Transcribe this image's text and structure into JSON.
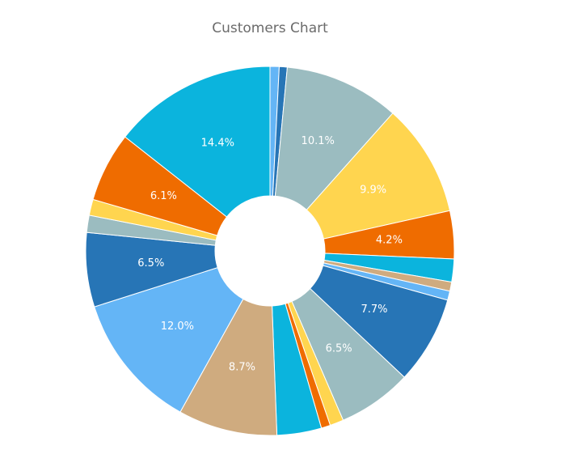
{
  "chart_data": {
    "type": "donut",
    "title": "Customers Chart",
    "values": [
      0.8,
      0.7,
      10.1,
      9.9,
      4.2,
      2.0,
      0.8,
      0.8,
      7.7,
      6.5,
      1.2,
      0.8,
      3.9,
      8.7,
      12.0,
      6.5,
      1.5,
      1.4,
      6.1,
      14.4
    ],
    "value_labels": [
      null,
      null,
      "10.1%",
      "9.9%",
      "4.2%",
      null,
      null,
      null,
      "7.7%",
      "6.5%",
      null,
      null,
      null,
      "8.7%",
      "12.0%",
      "6.5%",
      null,
      null,
      "6.1%",
      "14.4%"
    ],
    "colors": [
      "#64b5f6",
      "#2775b6",
      "#9bbcc0",
      "#ffd54f",
      "#ef6c00",
      "#0bb4dd",
      "#cfab7f",
      "#64b5f6",
      "#2775b6",
      "#9bbcc0",
      "#ffd54f",
      "#ef6c00",
      "#0bb4dd",
      "#cfab7f",
      "#64b5f6",
      "#2775b6",
      "#9bbcc0",
      "#ffd54f",
      "#ef6c00",
      "#0bb4dd"
    ]
  }
}
